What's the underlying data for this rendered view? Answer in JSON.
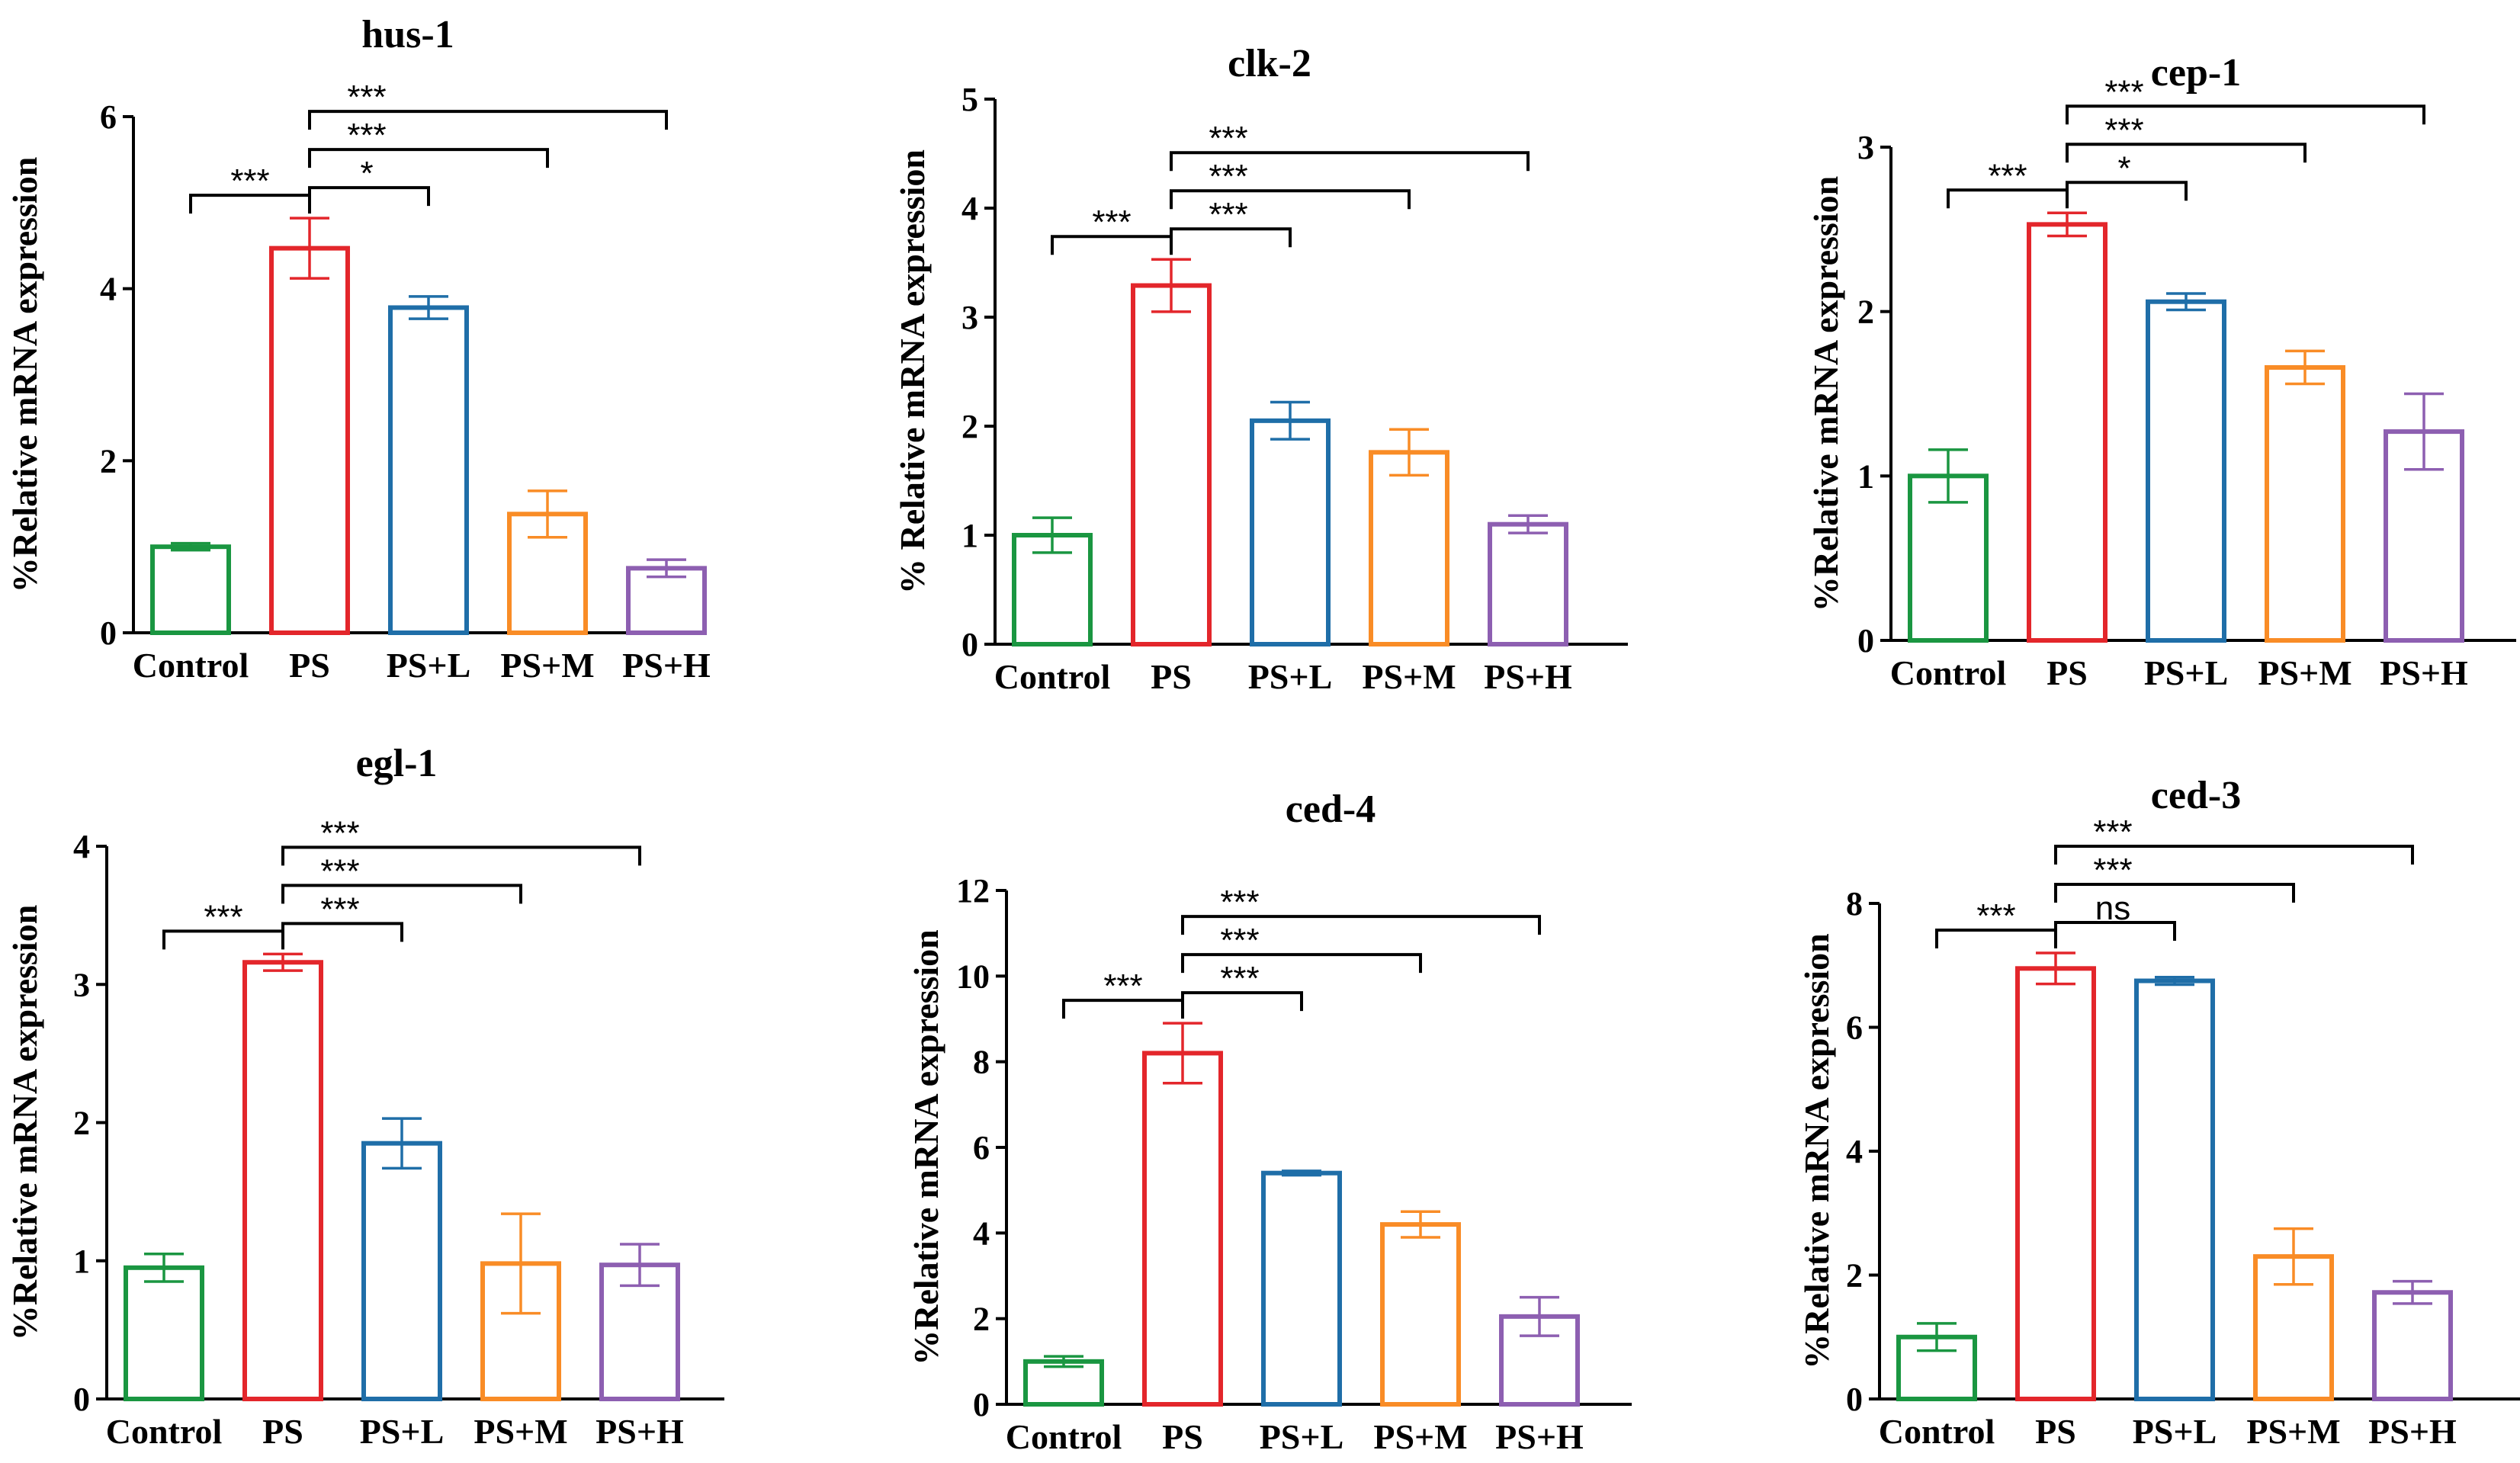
{
  "colors": {
    "Control": "#1a9641",
    "PS": "#e3262b",
    "PS+L": "#1f6ea8",
    "PS+M": "#f98c26",
    "PS+H": "#8d5fb1",
    "axis": "#000000"
  },
  "chart_data": [
    {
      "type": "bar",
      "title": "hus-1",
      "ylabel": "%Relative mRNA expression",
      "categories": [
        "Control",
        "PS",
        "PS+L",
        "PS+M",
        "PS+H"
      ],
      "values": [
        1.0,
        4.47,
        3.78,
        1.38,
        0.75
      ],
      "errors": [
        0.04,
        0.35,
        0.13,
        0.27,
        0.1
      ],
      "ylim": [
        0,
        6
      ],
      "yticks": [
        0,
        2,
        4,
        6
      ],
      "significance": [
        {
          "from": "Control",
          "to": "PS",
          "label": "***"
        },
        {
          "from": "PS",
          "to": "PS+L",
          "label": "*"
        },
        {
          "from": "PS",
          "to": "PS+M",
          "label": "***"
        },
        {
          "from": "PS",
          "to": "PS+H",
          "label": "***"
        }
      ]
    },
    {
      "type": "bar",
      "title": "clk-2",
      "ylabel": "% Relative mRNA expression",
      "categories": [
        "Control",
        "PS",
        "PS+L",
        "PS+M",
        "PS+H"
      ],
      "values": [
        1.0,
        3.29,
        2.05,
        1.76,
        1.1
      ],
      "errors": [
        0.16,
        0.24,
        0.17,
        0.21,
        0.08
      ],
      "ylim": [
        0,
        5
      ],
      "yticks": [
        0,
        1,
        2,
        3,
        4,
        5
      ],
      "significance": [
        {
          "from": "Control",
          "to": "PS",
          "label": "***"
        },
        {
          "from": "PS",
          "to": "PS+L",
          "label": "***"
        },
        {
          "from": "PS",
          "to": "PS+M",
          "label": "***"
        },
        {
          "from": "PS",
          "to": "PS+H",
          "label": "***"
        }
      ]
    },
    {
      "type": "bar",
      "title": "cep-1",
      "ylabel": "%Relative mRNA expression",
      "categories": [
        "Control",
        "PS",
        "PS+L",
        "PS+M",
        "PS+H"
      ],
      "values": [
        1.0,
        2.53,
        2.06,
        1.66,
        1.27
      ],
      "errors": [
        0.16,
        0.07,
        0.05,
        0.1,
        0.23
      ],
      "ylim": [
        0,
        3
      ],
      "yticks": [
        0,
        1,
        2,
        3
      ],
      "significance": [
        {
          "from": "Control",
          "to": "PS",
          "label": "***"
        },
        {
          "from": "PS",
          "to": "PS+L",
          "label": "*"
        },
        {
          "from": "PS",
          "to": "PS+M",
          "label": "***"
        },
        {
          "from": "PS",
          "to": "PS+H",
          "label": "***"
        }
      ]
    },
    {
      "type": "bar",
      "title": "egl-1",
      "ylabel": "%Relative mRNA expression",
      "categories": [
        "Control",
        "PS",
        "PS+L",
        "PS+M",
        "PS+H"
      ],
      "values": [
        0.95,
        3.16,
        1.85,
        0.98,
        0.97
      ],
      "errors": [
        0.1,
        0.06,
        0.18,
        0.36,
        0.15
      ],
      "ylim": [
        0,
        4
      ],
      "yticks": [
        0,
        1,
        2,
        3,
        4
      ],
      "significance": [
        {
          "from": "Control",
          "to": "PS",
          "label": "***"
        },
        {
          "from": "PS",
          "to": "PS+L",
          "label": "***"
        },
        {
          "from": "PS",
          "to": "PS+M",
          "label": "***"
        },
        {
          "from": "PS",
          "to": "PS+H",
          "label": "***"
        }
      ]
    },
    {
      "type": "bar",
      "title": "ced-4",
      "ylabel": "%Relative mRNA expression",
      "categories": [
        "Control",
        "PS",
        "PS+L",
        "PS+M",
        "PS+H"
      ],
      "values": [
        1.0,
        8.2,
        5.4,
        4.2,
        2.05
      ],
      "errors": [
        0.12,
        0.7,
        0.05,
        0.3,
        0.45
      ],
      "ylim": [
        0,
        12
      ],
      "yticks": [
        0,
        2,
        4,
        6,
        8,
        10,
        12
      ],
      "significance": [
        {
          "from": "Control",
          "to": "PS",
          "label": "***"
        },
        {
          "from": "PS",
          "to": "PS+L",
          "label": "***"
        },
        {
          "from": "PS",
          "to": "PS+M",
          "label": "***"
        },
        {
          "from": "PS",
          "to": "PS+H",
          "label": "***"
        }
      ]
    },
    {
      "type": "bar",
      "title": "ced-3",
      "ylabel": "%Relative mRNA expression",
      "categories": [
        "Control",
        "PS",
        "PS+L",
        "PS+M",
        "PS+H"
      ],
      "values": [
        1.0,
        6.95,
        6.75,
        2.3,
        1.72
      ],
      "errors": [
        0.22,
        0.25,
        0.06,
        0.45,
        0.18
      ],
      "ylim": [
        0,
        8
      ],
      "yticks": [
        0,
        2,
        4,
        6,
        8
      ],
      "significance": [
        {
          "from": "Control",
          "to": "PS",
          "label": "***"
        },
        {
          "from": "PS",
          "to": "PS+L",
          "label": "ns"
        },
        {
          "from": "PS",
          "to": "PS+M",
          "label": "***"
        },
        {
          "from": "PS",
          "to": "PS+H",
          "label": "***"
        }
      ]
    }
  ]
}
